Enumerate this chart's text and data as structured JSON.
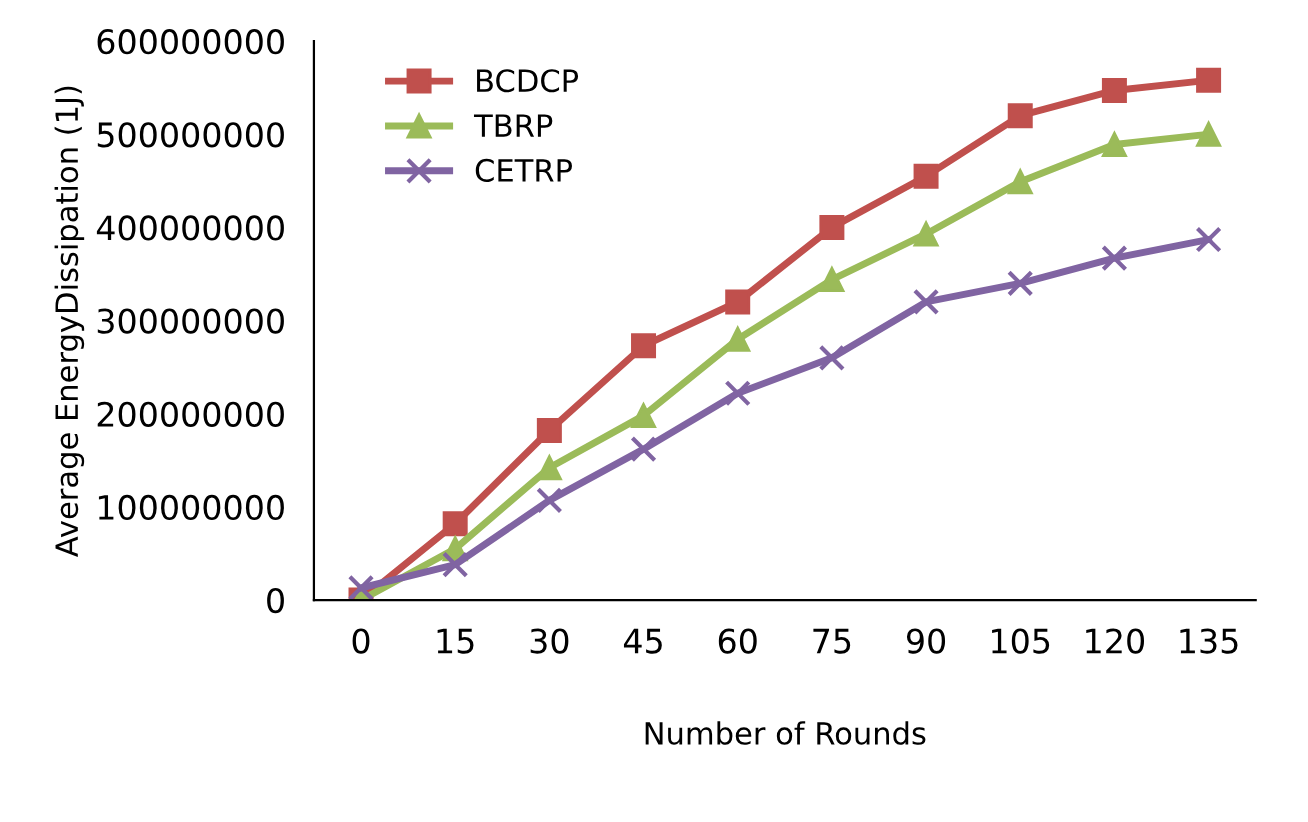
{
  "chart_data": {
    "type": "line",
    "xlabel": "Number of Rounds",
    "ylabel": "Average EnergyDissipation (1J)",
    "categories": [
      "0",
      "15",
      "30",
      "45",
      "60",
      "75",
      "90",
      "105",
      "120",
      "135"
    ],
    "series": [
      {
        "name": "BCDCP",
        "color": "#c0504d",
        "marker": "square",
        "values": [
          0,
          82000000,
          182000000,
          273000000,
          320000000,
          400000000,
          455000000,
          520000000,
          547000000,
          558000000
        ]
      },
      {
        "name": "TBRP",
        "color": "#9bbb59",
        "marker": "triangle",
        "values": [
          0,
          55000000,
          142000000,
          198000000,
          280000000,
          344000000,
          393000000,
          449000000,
          489000000,
          500000000
        ]
      },
      {
        "name": "CETRP",
        "color": "#8064a2",
        "marker": "cross",
        "values": [
          13000000,
          38000000,
          107000000,
          162000000,
          222000000,
          260000000,
          320000000,
          340000000,
          367000000,
          387000000
        ]
      }
    ],
    "ylim": [
      0,
      600000000
    ],
    "yticks": [
      0,
      100000000,
      200000000,
      300000000,
      400000000,
      500000000,
      600000000
    ],
    "grid": false,
    "legend": "top left"
  }
}
